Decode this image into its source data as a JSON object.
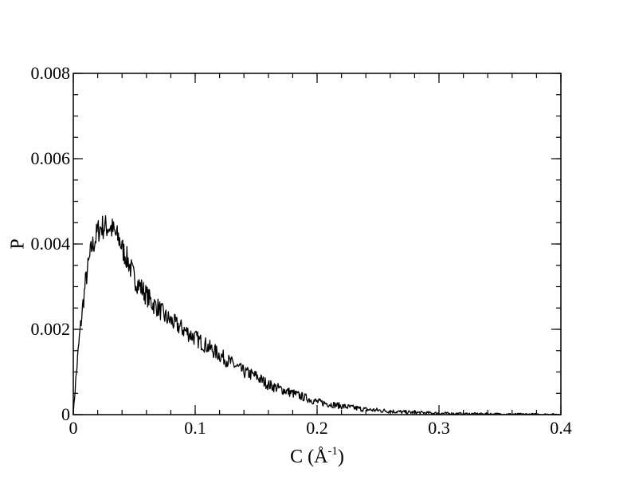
{
  "chart_data": {
    "type": "line",
    "title": "",
    "xlabel": "C (Å",
    "xlabel_unit_exp": "-1",
    "xlabel_close": ")",
    "ylabel": "P",
    "xlim": [
      0,
      0.4
    ],
    "ylim": [
      0,
      0.008
    ],
    "x_ticks": [
      0,
      0.1,
      0.2,
      0.3,
      0.4
    ],
    "x_tick_labels": [
      "0",
      "0.1",
      "0.2",
      "0.3",
      "0.4"
    ],
    "y_ticks": [
      0,
      0.002,
      0.004,
      0.006,
      0.008
    ],
    "y_tick_labels": [
      "0",
      "0.002",
      "0.004",
      "0.006",
      "0.008"
    ],
    "x_minor_step": 0.02,
    "y_minor_step": 0.0005,
    "grid": false,
    "legend": "none",
    "series": [
      {
        "x": [
          0,
          0.002,
          0.005,
          0.008,
          0.01,
          0.013,
          0.015,
          0.018,
          0.02,
          0.023,
          0.025,
          0.028,
          0.03,
          0.033,
          0.035,
          0.038,
          0.04,
          0.045,
          0.05,
          0.055,
          0.06,
          0.065,
          0.07,
          0.075,
          0.08,
          0.085,
          0.09,
          0.095,
          0.1,
          0.11,
          0.12,
          0.13,
          0.14,
          0.15,
          0.16,
          0.17,
          0.18,
          0.19,
          0.2,
          0.21,
          0.22,
          0.23,
          0.24,
          0.25,
          0.26,
          0.27,
          0.28,
          0.29,
          0.3,
          0.32,
          0.34,
          0.36,
          0.38,
          0.4
        ],
        "y": [
          0,
          0.0008,
          0.0018,
          0.0026,
          0.0031,
          0.0036,
          0.0039,
          0.0041,
          0.0043,
          0.0044,
          0.0044,
          0.0044,
          0.0044,
          0.0043,
          0.0042,
          0.0041,
          0.0039,
          0.0036,
          0.0032,
          0.003,
          0.0028,
          0.0026,
          0.0025,
          0.0023,
          0.0022,
          0.0021,
          0.002,
          0.0019,
          0.0018,
          0.0016,
          0.0014,
          0.0012,
          0.001,
          0.0009,
          0.0007,
          0.0006,
          0.0005,
          0.0004,
          0.0003,
          0.00025,
          0.0002,
          0.00016,
          0.00012,
          0.0001,
          8e-05,
          6e-05,
          5e-05,
          4e-05,
          3e-05,
          2e-05,
          1.5e-05,
          1e-05,
          8e-06,
          5e-06
        ]
      }
    ]
  }
}
